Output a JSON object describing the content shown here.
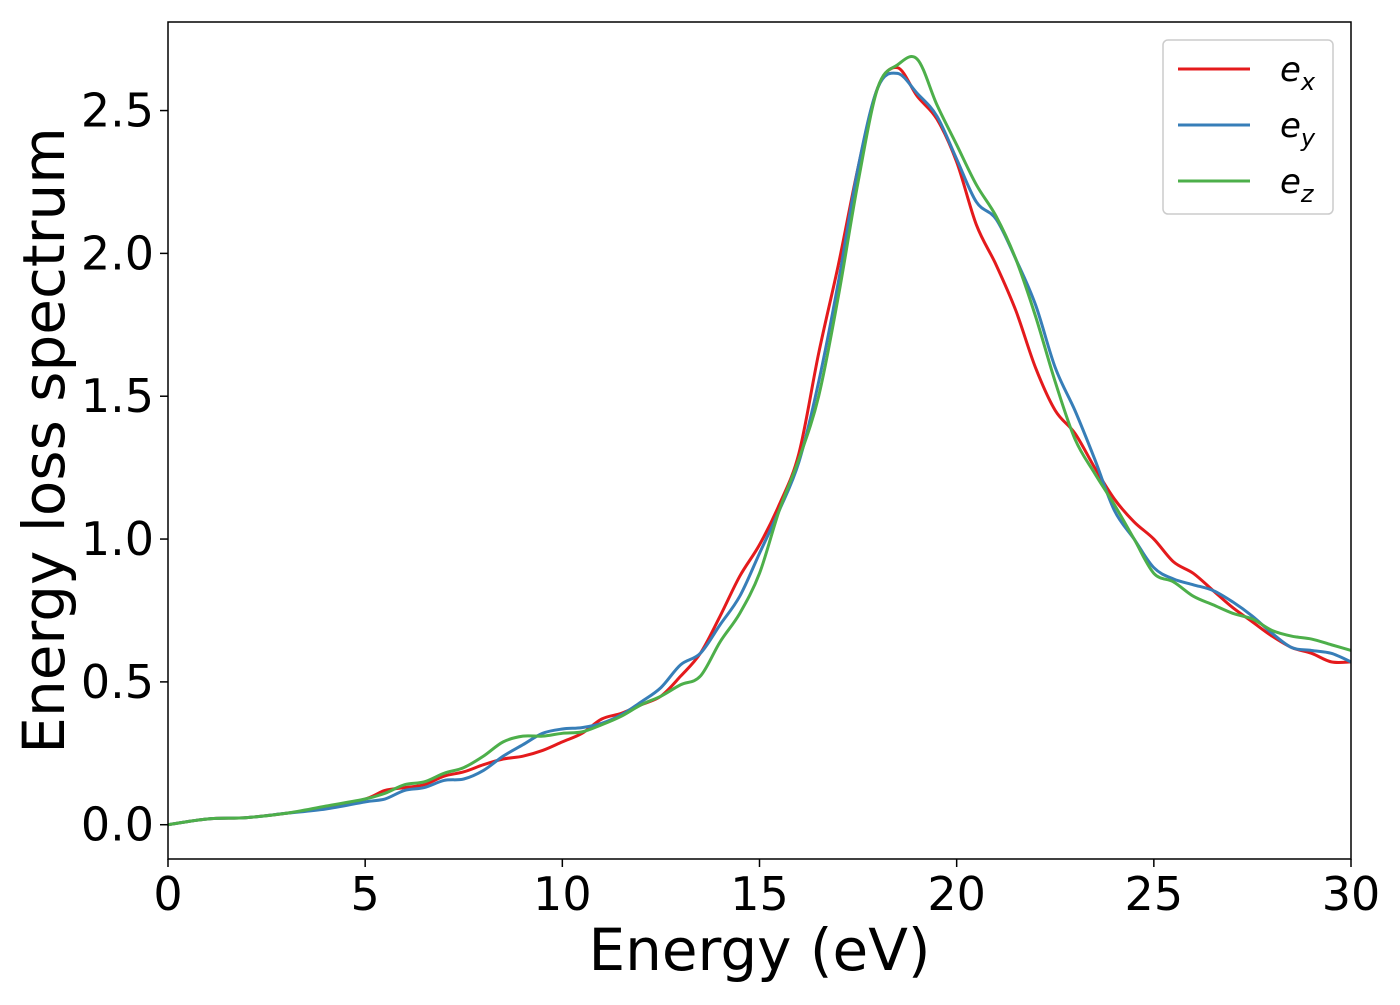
{
  "chart_data": {
    "type": "line",
    "xlabel": "Energy (eV)",
    "ylabel": "Energy loss spectrum",
    "xlim": [
      0,
      30
    ],
    "ylim": [
      -0.12,
      2.81
    ],
    "x_ticks": [
      "0",
      "5",
      "10",
      "15",
      "20",
      "25",
      "30"
    ],
    "y_ticks": [
      "0.0",
      "0.5",
      "1.0",
      "1.5",
      "2.0",
      "2.5"
    ],
    "grid": false,
    "legend_position": "top-right",
    "series": [
      {
        "name": "e",
        "subscript": "x",
        "color": "#e41a1c",
        "points": [
          [
            0,
            0
          ],
          [
            1,
            0.02
          ],
          [
            2,
            0.025
          ],
          [
            3,
            0.04
          ],
          [
            4,
            0.06
          ],
          [
            5,
            0.09
          ],
          [
            5.5,
            0.12
          ],
          [
            6,
            0.13
          ],
          [
            6.5,
            0.14
          ],
          [
            7,
            0.17
          ],
          [
            7.5,
            0.185
          ],
          [
            8,
            0.21
          ],
          [
            8.5,
            0.23
          ],
          [
            9,
            0.24
          ],
          [
            9.5,
            0.26
          ],
          [
            10,
            0.29
          ],
          [
            10.5,
            0.32
          ],
          [
            11,
            0.37
          ],
          [
            11.5,
            0.39
          ],
          [
            12,
            0.42
          ],
          [
            12.5,
            0.45
          ],
          [
            13,
            0.52
          ],
          [
            13.5,
            0.6
          ],
          [
            14,
            0.73
          ],
          [
            14.5,
            0.87
          ],
          [
            15,
            0.98
          ],
          [
            15.5,
            1.12
          ],
          [
            16,
            1.3
          ],
          [
            16.5,
            1.65
          ],
          [
            17,
            1.96
          ],
          [
            17.5,
            2.3
          ],
          [
            18,
            2.58
          ],
          [
            18.5,
            2.65
          ],
          [
            19,
            2.55
          ],
          [
            19.5,
            2.47
          ],
          [
            20,
            2.32
          ],
          [
            20.5,
            2.1
          ],
          [
            21,
            1.96
          ],
          [
            21.5,
            1.8
          ],
          [
            22,
            1.6
          ],
          [
            22.5,
            1.45
          ],
          [
            23,
            1.37
          ],
          [
            23.5,
            1.25
          ],
          [
            24,
            1.14
          ],
          [
            24.5,
            1.06
          ],
          [
            25,
            1.0
          ],
          [
            25.5,
            0.92
          ],
          [
            26,
            0.88
          ],
          [
            26.5,
            0.82
          ],
          [
            27,
            0.76
          ],
          [
            27.5,
            0.71
          ],
          [
            28,
            0.66
          ],
          [
            28.5,
            0.62
          ],
          [
            29,
            0.6
          ],
          [
            29.5,
            0.57
          ],
          [
            30,
            0.57
          ]
        ]
      },
      {
        "name": "e",
        "subscript": "y",
        "color": "#377eb8",
        "points": [
          [
            0,
            0
          ],
          [
            1,
            0.02
          ],
          [
            2,
            0.025
          ],
          [
            3,
            0.04
          ],
          [
            4,
            0.055
          ],
          [
            5,
            0.08
          ],
          [
            5.5,
            0.09
          ],
          [
            6,
            0.12
          ],
          [
            6.5,
            0.13
          ],
          [
            7,
            0.155
          ],
          [
            7.5,
            0.16
          ],
          [
            8,
            0.19
          ],
          [
            8.5,
            0.24
          ],
          [
            9,
            0.28
          ],
          [
            9.5,
            0.32
          ],
          [
            10,
            0.335
          ],
          [
            10.5,
            0.34
          ],
          [
            11,
            0.355
          ],
          [
            11.5,
            0.385
          ],
          [
            12,
            0.43
          ],
          [
            12.5,
            0.48
          ],
          [
            13,
            0.56
          ],
          [
            13.5,
            0.6
          ],
          [
            14,
            0.7
          ],
          [
            14.5,
            0.8
          ],
          [
            15,
            0.95
          ],
          [
            15.5,
            1.1
          ],
          [
            16,
            1.27
          ],
          [
            16.5,
            1.55
          ],
          [
            17,
            1.9
          ],
          [
            17.5,
            2.3
          ],
          [
            18,
            2.58
          ],
          [
            18.5,
            2.63
          ],
          [
            19,
            2.56
          ],
          [
            19.5,
            2.48
          ],
          [
            20,
            2.33
          ],
          [
            20.5,
            2.18
          ],
          [
            21,
            2.12
          ],
          [
            21.5,
            1.98
          ],
          [
            22,
            1.82
          ],
          [
            22.5,
            1.6
          ],
          [
            23,
            1.45
          ],
          [
            23.5,
            1.28
          ],
          [
            24,
            1.1
          ],
          [
            24.5,
            1.0
          ],
          [
            25,
            0.9
          ],
          [
            25.5,
            0.86
          ],
          [
            26,
            0.84
          ],
          [
            26.5,
            0.82
          ],
          [
            27,
            0.78
          ],
          [
            27.5,
            0.73
          ],
          [
            28,
            0.67
          ],
          [
            28.5,
            0.62
          ],
          [
            29,
            0.61
          ],
          [
            29.5,
            0.6
          ],
          [
            30,
            0.57
          ]
        ]
      },
      {
        "name": "e",
        "subscript": "z",
        "color": "#4daf4a",
        "points": [
          [
            0,
            0
          ],
          [
            1,
            0.02
          ],
          [
            2,
            0.025
          ],
          [
            3,
            0.04
          ],
          [
            4,
            0.065
          ],
          [
            5,
            0.09
          ],
          [
            5.5,
            0.11
          ],
          [
            6,
            0.14
          ],
          [
            6.5,
            0.15
          ],
          [
            7,
            0.18
          ],
          [
            7.5,
            0.2
          ],
          [
            8,
            0.24
          ],
          [
            8.5,
            0.29
          ],
          [
            9,
            0.31
          ],
          [
            9.5,
            0.31
          ],
          [
            10,
            0.32
          ],
          [
            10.5,
            0.325
          ],
          [
            11,
            0.35
          ],
          [
            11.5,
            0.38
          ],
          [
            12,
            0.42
          ],
          [
            12.5,
            0.45
          ],
          [
            13,
            0.49
          ],
          [
            13.5,
            0.52
          ],
          [
            14,
            0.64
          ],
          [
            14.5,
            0.74
          ],
          [
            15,
            0.88
          ],
          [
            15.5,
            1.1
          ],
          [
            16,
            1.28
          ],
          [
            16.5,
            1.5
          ],
          [
            17,
            1.85
          ],
          [
            17.5,
            2.25
          ],
          [
            18,
            2.58
          ],
          [
            18.5,
            2.66
          ],
          [
            19,
            2.68
          ],
          [
            19.5,
            2.52
          ],
          [
            20,
            2.38
          ],
          [
            20.5,
            2.24
          ],
          [
            21,
            2.13
          ],
          [
            21.5,
            1.98
          ],
          [
            22,
            1.78
          ],
          [
            22.5,
            1.55
          ],
          [
            23,
            1.35
          ],
          [
            23.5,
            1.23
          ],
          [
            24,
            1.12
          ],
          [
            24.5,
            1.0
          ],
          [
            25,
            0.88
          ],
          [
            25.5,
            0.85
          ],
          [
            26,
            0.8
          ],
          [
            26.5,
            0.77
          ],
          [
            27,
            0.74
          ],
          [
            27.5,
            0.72
          ],
          [
            28,
            0.68
          ],
          [
            28.5,
            0.66
          ],
          [
            29,
            0.65
          ],
          [
            29.5,
            0.63
          ],
          [
            30,
            0.61
          ]
        ]
      }
    ]
  }
}
